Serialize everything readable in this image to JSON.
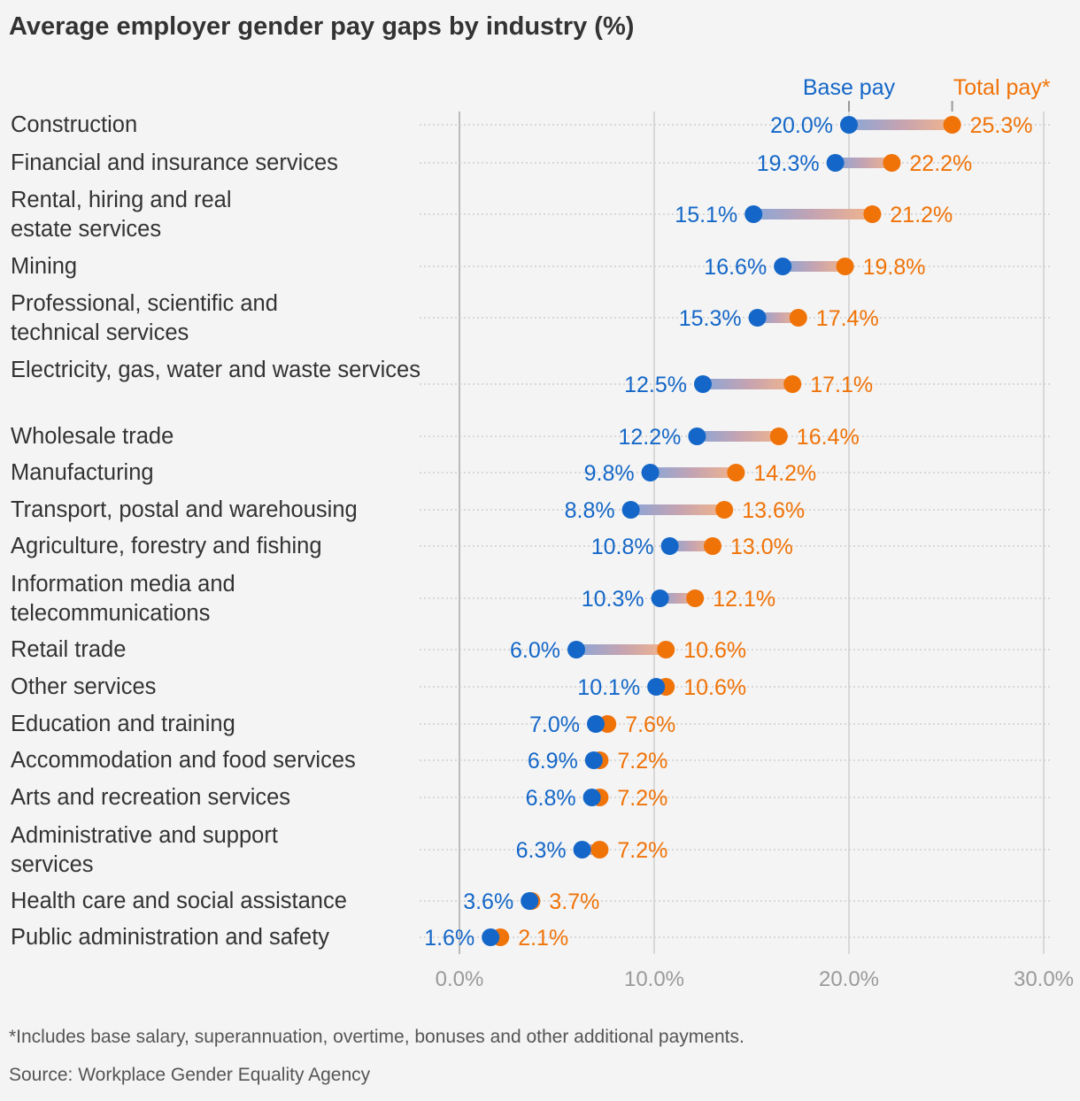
{
  "title": "Average employer gender pay gaps by industry (%)",
  "footnote": "*Includes base salary, superannuation, overtime, bonuses and other additional payments.",
  "source": "Source: Workplace Gender Equality Agency",
  "colors": {
    "base": "#1467c8",
    "total": "#f07308",
    "axis": "#999999",
    "background": "#f4f4f4"
  },
  "chart_data": {
    "type": "dumbbell",
    "title": "Average employer gender pay gaps by industry (%)",
    "xlim": [
      0,
      30
    ],
    "x_ticks": [
      "0.0%",
      "10.0%",
      "20.0%",
      "30.0%"
    ],
    "grid": true,
    "legend_placement": "top",
    "series": [
      {
        "name": "Base pay",
        "color": "#1467c8"
      },
      {
        "name": "Total pay*",
        "color": "#f07308"
      }
    ],
    "categories": [
      "Construction",
      "Financial and insurance services",
      "Rental, hiring and real estate services",
      "Mining",
      "Professional, scientific and technical services",
      "Electricity, gas, water and waste services",
      "Wholesale trade",
      "Manufacturing",
      "Transport, postal and warehousing",
      "Agriculture, forestry and fishing",
      "Information media and telecommunications",
      "Retail trade",
      "Other services",
      "Education and training",
      "Accommodation and food services",
      "Arts and recreation services",
      "Administrative and support services",
      "Health care and social assistance",
      "Public administration and safety"
    ],
    "base": [
      20.0,
      19.3,
      15.1,
      16.6,
      15.3,
      12.5,
      12.2,
      9.8,
      8.8,
      10.8,
      10.3,
      6.0,
      10.1,
      7.0,
      6.9,
      6.8,
      6.3,
      3.6,
      1.6
    ],
    "total": [
      25.3,
      22.2,
      21.2,
      19.8,
      17.4,
      17.1,
      16.4,
      14.2,
      13.6,
      13.0,
      12.1,
      10.6,
      10.6,
      7.6,
      7.2,
      7.2,
      7.2,
      3.7,
      2.1
    ]
  }
}
